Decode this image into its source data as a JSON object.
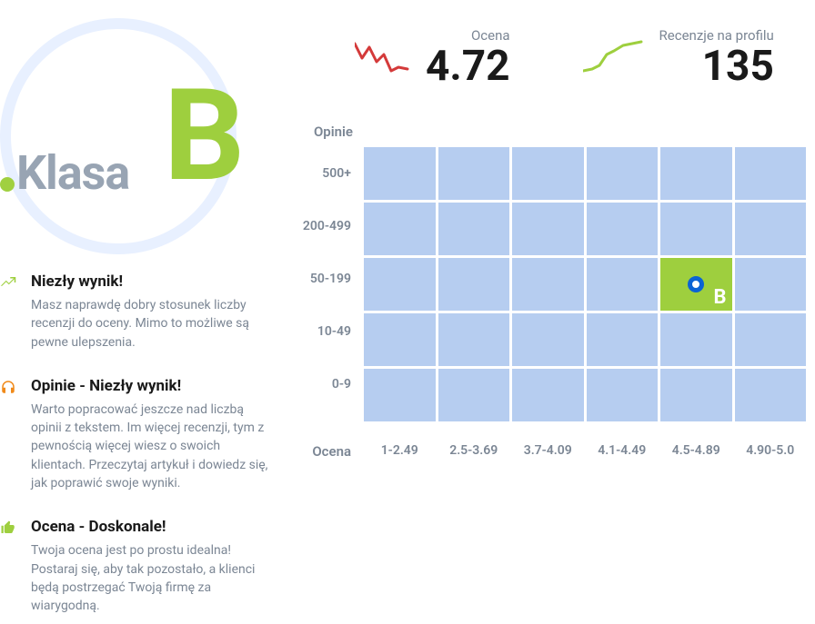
{
  "badge": {
    "prefix": "Klasa",
    "letter": "B",
    "accent_color": "#9ecf3e",
    "circle_color": "#e8f0ff",
    "prefix_color": "#98a4b3"
  },
  "metrics": {
    "rating": {
      "label": "Ocena",
      "value": "4.72",
      "spark_color": "#d43a3a",
      "spark_points": [
        0,
        8,
        8,
        24,
        16,
        12,
        24,
        28,
        32,
        20,
        40,
        38,
        48,
        34,
        58,
        36
      ]
    },
    "reviews": {
      "label": "Recenzje na profilu",
      "value": "135",
      "spark_color": "#9ecf3e",
      "spark_points": [
        0,
        38,
        10,
        36,
        18,
        32,
        26,
        20,
        34,
        16,
        44,
        10,
        54,
        8,
        64,
        6
      ]
    }
  },
  "insights": [
    {
      "icon": "trend-up-icon",
      "icon_color": "#9ecf3e",
      "title": "Niezły wynik!",
      "desc": "Masz naprawdę dobry stosunek liczby recenzji do oceny. Mimo to możliwe są pewne ulepszenia."
    },
    {
      "icon": "headphones-icon",
      "icon_color": "#f08a1a",
      "title": "Opinie - Niezły wynik!",
      "desc": "Warto popracować jeszcze nad liczbą opinii z tekstem. Im więcej recenzji, tym z pewnością więcej wiesz o swoich klientach. Przeczytaj artykuł i dowiedz się, jak poprawić swoje wyniki."
    },
    {
      "icon": "thumb-up-icon",
      "icon_color": "#9ecf3e",
      "title": "Ocena - Doskonale!",
      "desc": "Twoja ocena jest po prostu idealna! Postaraj się, aby tak pozostało, a klienci będą postrzegać Twoją firmę za wiarygodną."
    }
  ],
  "chart": {
    "y_title": "Opinie",
    "x_title": "Ocena",
    "y_labels": [
      "500+",
      "200-499",
      "50-199",
      "10-49",
      "0-9"
    ],
    "x_labels": [
      "1-2.49",
      "2.5-3.69",
      "3.7-4.09",
      "4.1-4.49",
      "4.5-4.89",
      "4.90-5.0"
    ],
    "cell_color": "#b6cdf0",
    "active_color": "#9ecf3e",
    "marker_color": "#0b63d4",
    "active_cell": {
      "row": 2,
      "col": 4,
      "letter": "B"
    }
  }
}
